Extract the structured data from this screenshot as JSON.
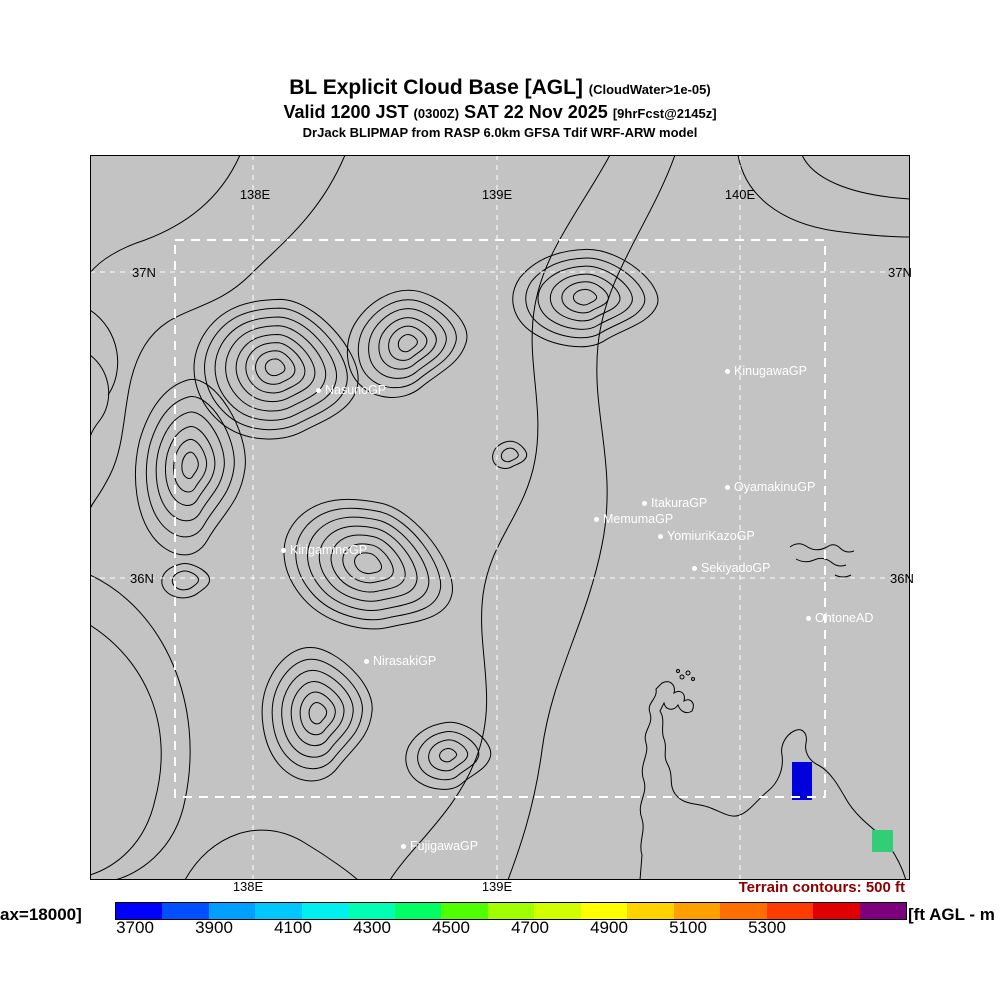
{
  "title": {
    "line1": "BL Explicit Cloud Base [AGL]",
    "line1_small": "(CloudWater>1e-05)",
    "line2_a": "Valid 1200 JST",
    "line2_small1": "(0300Z)",
    "line2_b": "SAT 22 Nov 2025",
    "line2_small2": "[9hrFcst@2145z]",
    "line3": "DrJack BLIPMAP from RASP 6.0km GFSA Tdif WRF-ARW model"
  },
  "map": {
    "grid_labels": {
      "top": [
        "138E",
        "139E",
        "140E"
      ],
      "bottom": [
        "138E",
        "139E"
      ],
      "lat_left": [
        "37N",
        "36N"
      ],
      "lat_right": [
        "37N",
        "36N"
      ]
    },
    "sites": [
      {
        "name": "KinugawaGP"
      },
      {
        "name": "NasunoGP"
      },
      {
        "name": "OyamakinuGP"
      },
      {
        "name": "ItakuraGP"
      },
      {
        "name": "MemumaGP"
      },
      {
        "name": "YomiuriKazoGP"
      },
      {
        "name": "KirigamineGP"
      },
      {
        "name": "SekiyadoGP"
      },
      {
        "name": "OhtoneAD"
      },
      {
        "name": "NirasakiGP"
      },
      {
        "name": "FujigawaGP"
      }
    ],
    "caption": "Terrain contours: 500 ft",
    "overlay_colors": {
      "blue_patch": "#0000dd",
      "green_patch": "#33cc77"
    }
  },
  "colorbar": {
    "left_label": "ax=18000]",
    "right_label": "[ft AGL - m",
    "ticks": [
      "3700",
      "3900",
      "4100",
      "4300",
      "4500",
      "4700",
      "4900",
      "5100",
      "5300"
    ],
    "colors": [
      "#0000ff",
      "#0050ff",
      "#00a0ff",
      "#00c8ff",
      "#00f0f0",
      "#00ffb4",
      "#00ff64",
      "#50ff00",
      "#a0ff00",
      "#d2ff00",
      "#ffff00",
      "#ffd200",
      "#ffa000",
      "#ff6e00",
      "#ff3c00",
      "#e10000",
      "#7d007d"
    ]
  }
}
